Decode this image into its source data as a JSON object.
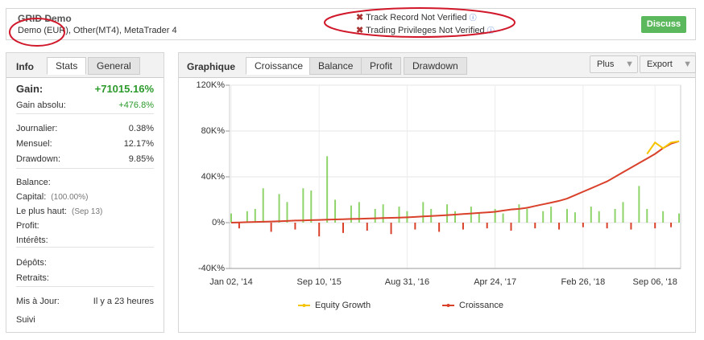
{
  "header": {
    "title": "GRID Demo",
    "subtitle": "Demo (EUR), Other(MT4), MetaTrader 4",
    "notices": [
      "Track Record Not Verified",
      "Trading Privileges Not Verified"
    ],
    "button": "Discuss"
  },
  "left_panel": {
    "title": "Info",
    "tabs": [
      "Stats",
      "General"
    ],
    "rows": [
      {
        "label": "Gain:",
        "value": "+71015.16%"
      },
      {
        "label": "Gain absolu:",
        "value": "+476.8%"
      },
      {
        "label": "Journalier:",
        "value": "0.38%"
      },
      {
        "label": "Mensuel:",
        "value": "12.17%"
      },
      {
        "label": "Drawdown:",
        "value": "9.85%"
      },
      {
        "label": "Balance:"
      },
      {
        "label": "Capital:",
        "note": "(100.00%)"
      },
      {
        "label": "Le plus haut:",
        "note": "(Sep 13)"
      },
      {
        "label": "Profit:"
      },
      {
        "label": "Intérêts:"
      },
      {
        "label": "Dépôts:"
      },
      {
        "label": "Retraits:"
      },
      {
        "label": "Mis à Jour:",
        "value": "Il y a 23 heures"
      },
      {
        "label": "Suivi"
      }
    ]
  },
  "chart_panel": {
    "title": "Graphique",
    "tabs": [
      "Croissance",
      "Balance",
      "Profit",
      "Drawdown"
    ],
    "buttons": [
      "Plus",
      "Export"
    ]
  },
  "chart_data": {
    "type": "line",
    "categories": [
      "Jan 02, '14",
      null,
      null,
      null,
      null,
      null,
      null,
      null,
      null,
      null,
      null,
      "Sep 10, '15",
      null,
      null,
      null,
      null,
      null,
      null,
      null,
      null,
      null,
      null,
      "Aug 31, '16",
      null,
      null,
      null,
      null,
      null,
      null,
      null,
      null,
      null,
      null,
      "Apr 24, '17",
      null,
      null,
      null,
      null,
      null,
      null,
      null,
      null,
      null,
      null,
      "Feb 26, '18",
      null,
      null,
      null,
      null,
      null,
      null,
      null,
      null,
      "Sep 06, '18",
      null,
      null,
      null
    ],
    "series": [
      {
        "name": "Equity Growth",
        "color": "#f5c400",
        "values": [
          null,
          null,
          null,
          null,
          null,
          null,
          null,
          null,
          null,
          null,
          null,
          null,
          null,
          null,
          null,
          null,
          null,
          null,
          null,
          null,
          null,
          null,
          null,
          null,
          null,
          null,
          null,
          null,
          null,
          null,
          null,
          null,
          null,
          null,
          null,
          null,
          null,
          null,
          null,
          null,
          null,
          null,
          null,
          null,
          null,
          null,
          null,
          null,
          null,
          null,
          null,
          null,
          60000,
          70000,
          65000,
          70000,
          71015.16
        ]
      },
      {
        "name": "Croissance",
        "color": "#d9412b",
        "values": [
          0,
          200,
          400,
          600,
          800,
          1000,
          1200,
          1500,
          1800,
          2000,
          2200,
          2400,
          2600,
          2800,
          3000,
          3200,
          3400,
          3600,
          3800,
          4000,
          4200,
          4400,
          4600,
          5000,
          5400,
          5800,
          6200,
          6600,
          7000,
          7500,
          8000,
          8500,
          9000,
          9500,
          10500,
          11500,
          12000,
          13000,
          14500,
          16000,
          17500,
          19000,
          21000,
          24000,
          27000,
          30000,
          33000,
          36000,
          40000,
          44000,
          48000,
          52000,
          56000,
          60000,
          65000,
          69000,
          71015.16
        ]
      }
    ],
    "bars": {
      "positive_color": "#8fd46a",
      "negative_color": "#d9412b",
      "values": [
        8000,
        -5000,
        10000,
        12000,
        30000,
        -8000,
        25000,
        18000,
        -6000,
        30000,
        28000,
        -12000,
        58000,
        20000,
        -9000,
        15000,
        18000,
        -7000,
        12000,
        16000,
        -10000,
        14000,
        10000,
        -6000,
        18000,
        12000,
        -8000,
        16000,
        10000,
        -6000,
        14000,
        9000,
        -5000,
        12000,
        8000,
        -7000,
        16000,
        12000,
        -5000,
        10000,
        14000,
        -6000,
        12000,
        9000,
        -4000,
        14000,
        10000,
        -5000,
        12000,
        18000,
        -6000,
        32000,
        12000,
        -5000,
        10000,
        -4000,
        8000
      ]
    },
    "ylim": [
      -40000,
      120000
    ],
    "yticks": [
      {
        "value": -40000,
        "label": "-40K%"
      },
      {
        "value": 0,
        "label": "0%"
      },
      {
        "value": 40000,
        "label": "40K%"
      },
      {
        "value": 80000,
        "label": "80K%"
      },
      {
        "value": 120000,
        "label": "120K%"
      }
    ],
    "grid": true
  }
}
